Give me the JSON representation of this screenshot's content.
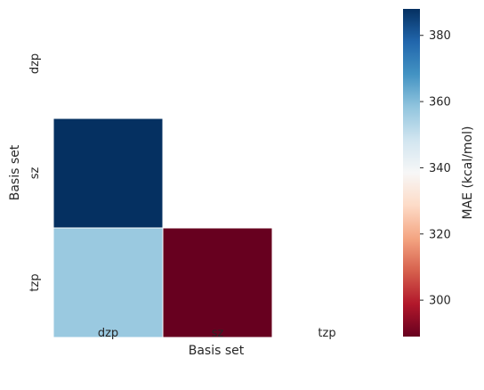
{
  "chart_data": {
    "type": "heatmap",
    "x_categories": [
      "dzp",
      "sz",
      "tzp"
    ],
    "y_categories": [
      "dzp",
      "sz",
      "tzp"
    ],
    "xlabel": "Basis set",
    "ylabel": "Basis set",
    "mask": "upper-triangle-including-diagonal",
    "cells": [
      {
        "row": "sz",
        "col": "dzp",
        "value": 388
      },
      {
        "row": "tzp",
        "col": "dzp",
        "value": 357
      },
      {
        "row": "tzp",
        "col": "sz",
        "value": 289
      }
    ],
    "colorbar": {
      "label": "MAE (kcal/mol)",
      "range": [
        289,
        388
      ],
      "ticks": [
        300,
        320,
        340,
        360,
        380
      ],
      "colormap": "RdBu",
      "colors": [
        "#67001f",
        "#b2182b",
        "#d6604d",
        "#f4a582",
        "#fddbc7",
        "#f7f7f7",
        "#d1e5f0",
        "#92c5de",
        "#4393c3",
        "#2166ac",
        "#053061"
      ]
    },
    "grid": false,
    "cell_border_color": "#ffffff"
  }
}
